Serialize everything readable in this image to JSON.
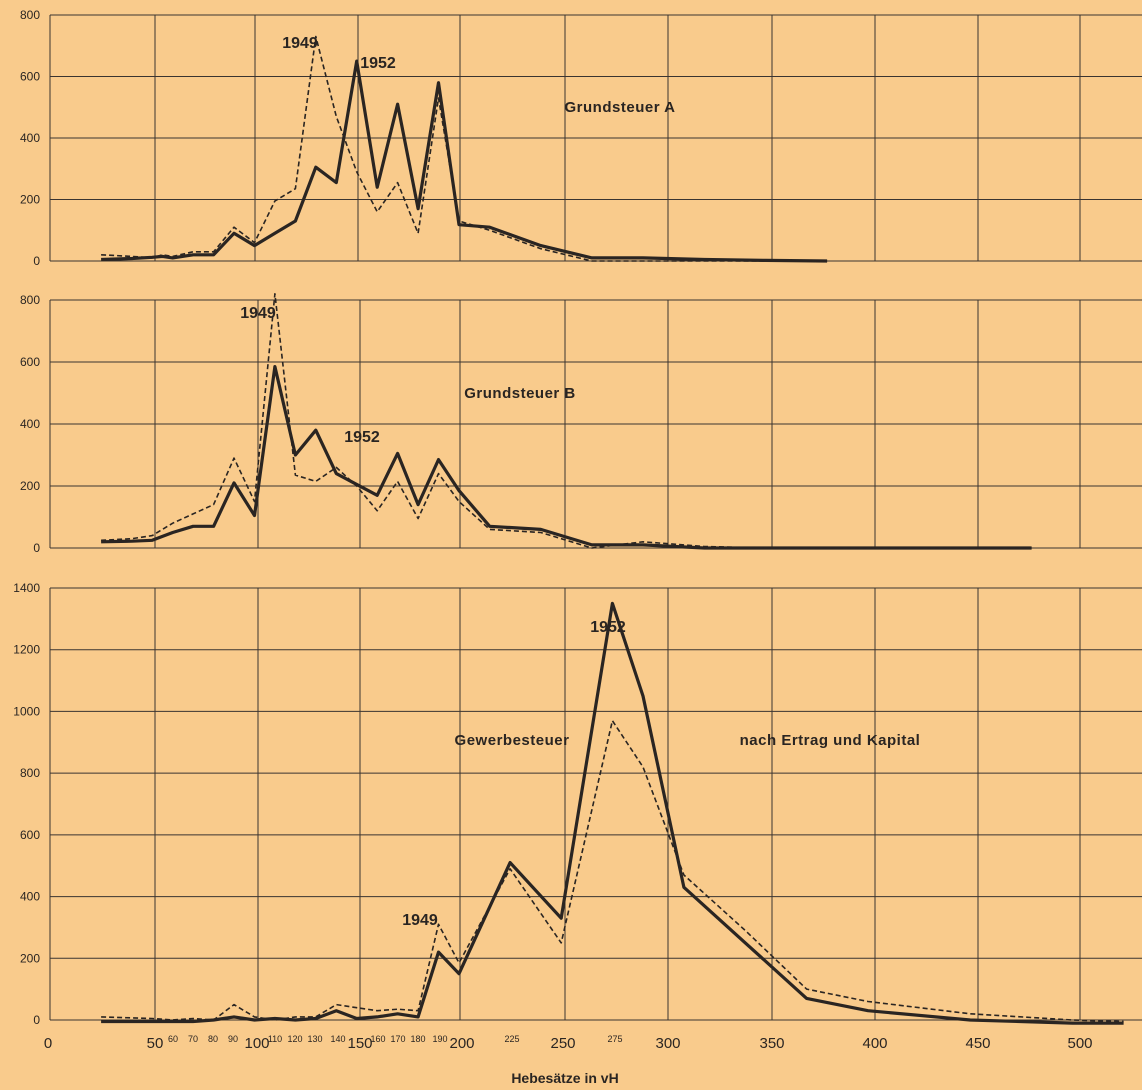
{
  "figure": {
    "xlabel": "Hebesätze in vH",
    "x_tick_labels_major": [
      "0",
      "50",
      "100",
      "150",
      "200",
      "250",
      "300",
      "350",
      "400",
      "450",
      "500"
    ],
    "x_tick_labels_minor": [
      "60",
      "70",
      "80",
      "90",
      "110",
      "120",
      "130",
      "140",
      "160",
      "170",
      "180",
      "190",
      "225",
      "275"
    ],
    "colors": {
      "background": "#f9cb8c",
      "grid": "#3a3430",
      "series_1952": "#2a2522",
      "series_1949": "#2a2522"
    }
  },
  "chart_data": [
    {
      "type": "line",
      "title": "Grundsteuer A",
      "ylim": [
        0,
        800
      ],
      "yticks": [
        0,
        200,
        400,
        600,
        800
      ],
      "grid": true,
      "series": [
        {
          "name": "1952",
          "style": "solid-thick",
          "x": [
            25,
            40,
            50,
            55,
            60,
            70,
            80,
            90,
            100,
            110,
            120,
            130,
            140,
            150,
            160,
            170,
            180,
            190,
            200,
            215,
            240,
            265,
            290,
            320,
            350,
            380
          ],
          "y": [
            5,
            8,
            12,
            15,
            10,
            20,
            20,
            90,
            50,
            90,
            130,
            305,
            255,
            650,
            240,
            510,
            170,
            580,
            118,
            110,
            50,
            10,
            10,
            5,
            2,
            0
          ]
        },
        {
          "name": "1949",
          "style": "dashed",
          "x": [
            25,
            40,
            50,
            55,
            60,
            70,
            80,
            90,
            100,
            110,
            120,
            130,
            140,
            150,
            160,
            170,
            180,
            190,
            200,
            215,
            240,
            265,
            290,
            320,
            350,
            380
          ],
          "y": [
            20,
            15,
            10,
            20,
            15,
            30,
            30,
            110,
            60,
            195,
            235,
            730,
            470,
            290,
            160,
            255,
            90,
            530,
            130,
            100,
            40,
            0,
            0,
            0,
            0,
            0
          ]
        }
      ],
      "annotations": [
        "1949",
        "1952"
      ]
    },
    {
      "type": "line",
      "title": "Grundsteuer B",
      "ylim": [
        0,
        800
      ],
      "yticks": [
        0,
        200,
        400,
        600,
        800
      ],
      "grid": true,
      "series": [
        {
          "name": "1952",
          "style": "solid-thick",
          "x": [
            25,
            40,
            50,
            60,
            70,
            80,
            90,
            100,
            110,
            120,
            130,
            140,
            150,
            160,
            170,
            180,
            190,
            200,
            215,
            240,
            265,
            290,
            320,
            350,
            400,
            450,
            480
          ],
          "y": [
            20,
            22,
            25,
            50,
            70,
            70,
            210,
            105,
            585,
            300,
            380,
            240,
            205,
            170,
            305,
            140,
            285,
            185,
            70,
            60,
            10,
            10,
            0,
            0,
            0,
            0,
            0
          ]
        },
        {
          "name": "1949",
          "style": "dashed",
          "x": [
            25,
            40,
            50,
            60,
            70,
            80,
            90,
            100,
            110,
            120,
            130,
            140,
            150,
            160,
            170,
            180,
            190,
            200,
            215,
            240,
            265,
            290,
            320,
            350,
            400,
            450,
            480
          ],
          "y": [
            25,
            30,
            40,
            80,
            110,
            140,
            290,
            150,
            820,
            235,
            215,
            260,
            200,
            120,
            215,
            95,
            240,
            150,
            60,
            50,
            0,
            20,
            5,
            0,
            0,
            0,
            0
          ]
        }
      ],
      "annotations": [
        "1949",
        "1952"
      ]
    },
    {
      "type": "line",
      "title": "Gewerbesteuer",
      "subtitle": "nach Ertrag und Kapital",
      "ylim": [
        0,
        1400
      ],
      "yticks": [
        0,
        200,
        400,
        600,
        800,
        1000,
        1200,
        1400
      ],
      "grid": true,
      "series": [
        {
          "name": "1952",
          "style": "solid-thick",
          "x": [
            25,
            50,
            60,
            70,
            80,
            90,
            100,
            110,
            120,
            130,
            140,
            150,
            160,
            170,
            180,
            190,
            200,
            225,
            250,
            275,
            290,
            310,
            340,
            370,
            400,
            450,
            500,
            525
          ],
          "y": [
            -5,
            -5,
            -5,
            -5,
            0,
            10,
            0,
            5,
            0,
            5,
            30,
            5,
            10,
            20,
            10,
            220,
            150,
            510,
            330,
            1350,
            1050,
            430,
            250,
            70,
            30,
            0,
            -10,
            -10
          ],
          "x_source_note": "drawn from tick positions"
        },
        {
          "name": "1949",
          "style": "dashed",
          "x": [
            25,
            50,
            60,
            70,
            80,
            90,
            100,
            110,
            120,
            130,
            140,
            150,
            160,
            170,
            180,
            190,
            200,
            225,
            250,
            275,
            290,
            310,
            340,
            370,
            400,
            450,
            500,
            525
          ],
          "y": [
            10,
            5,
            0,
            5,
            0,
            50,
            10,
            0,
            10,
            10,
            50,
            40,
            30,
            35,
            30,
            310,
            185,
            490,
            250,
            970,
            820,
            470,
            290,
            100,
            60,
            20,
            0,
            -5
          ]
        }
      ],
      "annotations": [
        "1949",
        "1952"
      ]
    }
  ]
}
